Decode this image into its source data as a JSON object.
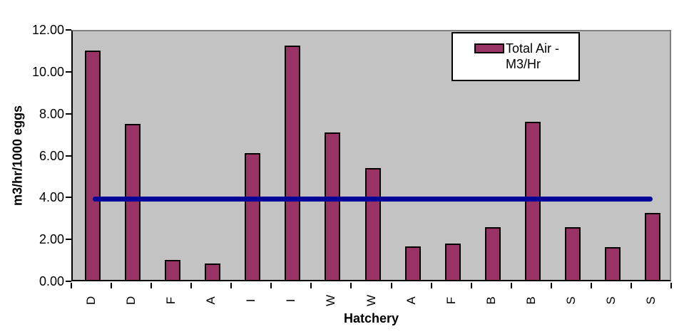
{
  "chart_data": {
    "type": "bar",
    "title": "",
    "xlabel": "Hatchery",
    "ylabel": "m3/hr/1000 eggs",
    "categories": [
      "D",
      "D",
      "F",
      "A",
      "I",
      "I",
      "W",
      "W",
      "A",
      "F",
      "B",
      "B",
      "S",
      "S",
      "S"
    ],
    "series": [
      {
        "name": "Total Air - M3/Hr",
        "values": [
          10.95,
          7.45,
          0.95,
          0.78,
          6.05,
          11.18,
          7.03,
          5.35,
          1.6,
          1.73,
          2.52,
          7.53,
          2.52,
          1.57,
          3.2
        ]
      }
    ],
    "reference_line": {
      "value": 4.0,
      "color": "#000099"
    },
    "ylim": [
      0,
      12
    ],
    "yticks": [
      {
        "value": 0,
        "label": "0.00"
      },
      {
        "value": 2,
        "label": "2.00"
      },
      {
        "value": 4,
        "label": "4.00"
      },
      {
        "value": 6,
        "label": "6.00"
      },
      {
        "value": 8,
        "label": "8.00"
      },
      {
        "value": 10,
        "label": "10.00"
      },
      {
        "value": 12,
        "label": "12.00"
      }
    ],
    "grid": false,
    "legend": {
      "label": "Total Air - M3/Hr",
      "position": "top-right"
    },
    "colors": {
      "bar_fill": "#993366",
      "bar_border": "#000000",
      "plot_bg": "#c3c3c3",
      "plot_border_shadow": "#808080",
      "axis": "#000000",
      "line": "#000099"
    }
  }
}
